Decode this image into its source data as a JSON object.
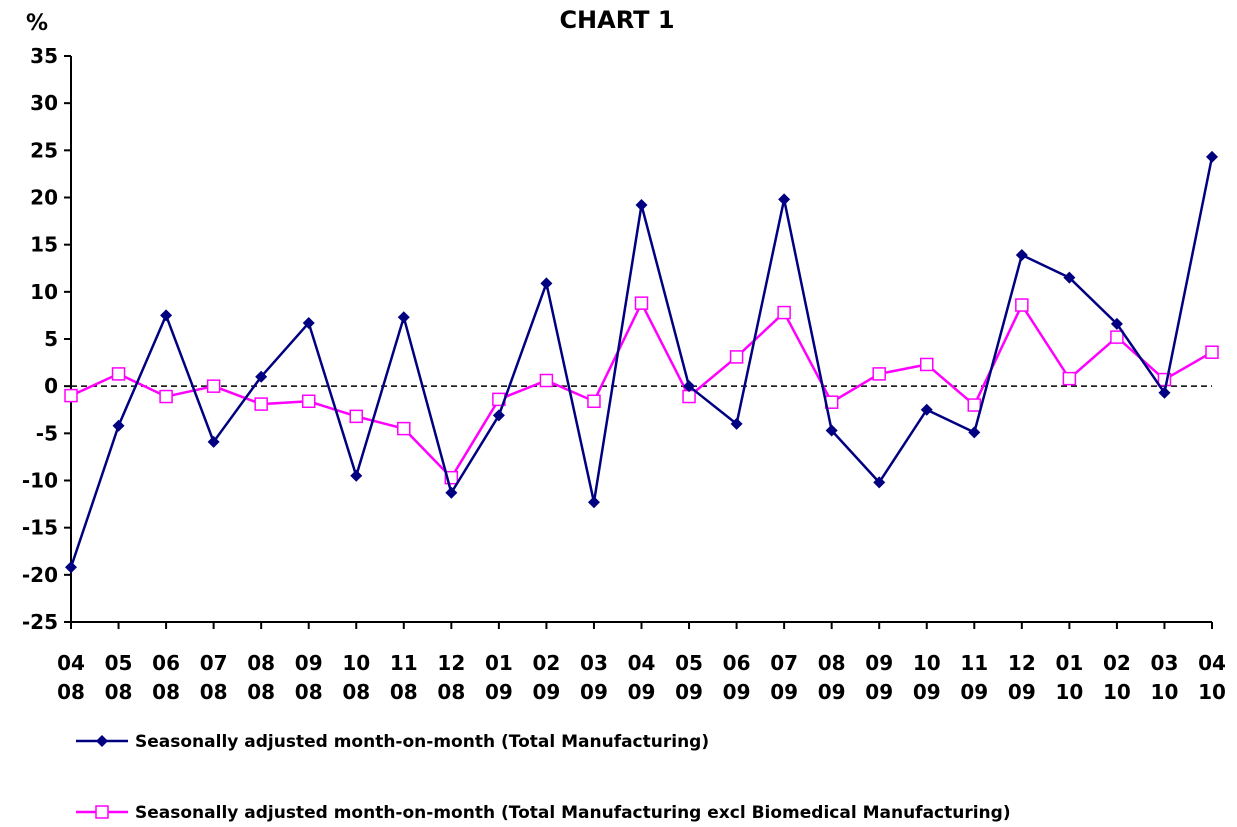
{
  "chart_data": {
    "type": "line",
    "title": "CHART 1",
    "ylabel": "%",
    "xlabel": "",
    "ylim": [
      -25,
      35
    ],
    "yticks": [
      35,
      30,
      25,
      20,
      15,
      10,
      5,
      0,
      -5,
      -10,
      -15,
      -20,
      -25
    ],
    "grid": false,
    "zero_line": "dashed",
    "legend_position": "bottom",
    "categories": [
      [
        "04",
        "08"
      ],
      [
        "05",
        "08"
      ],
      [
        "06",
        "08"
      ],
      [
        "07",
        "08"
      ],
      [
        "08",
        "08"
      ],
      [
        "09",
        "08"
      ],
      [
        "10",
        "08"
      ],
      [
        "11",
        "08"
      ],
      [
        "12",
        "08"
      ],
      [
        "01",
        "09"
      ],
      [
        "02",
        "09"
      ],
      [
        "03",
        "09"
      ],
      [
        "04",
        "09"
      ],
      [
        "05",
        "09"
      ],
      [
        "06",
        "09"
      ],
      [
        "07",
        "09"
      ],
      [
        "08",
        "09"
      ],
      [
        "09",
        "09"
      ],
      [
        "10",
        "09"
      ],
      [
        "11",
        "09"
      ],
      [
        "12",
        "09"
      ],
      [
        "01",
        "10"
      ],
      [
        "02",
        "10"
      ],
      [
        "03",
        "10"
      ],
      [
        "04",
        "10"
      ]
    ],
    "series": [
      {
        "name": "Seasonally adjusted month-on-month (Total Manufacturing)",
        "color": "#000080",
        "marker": "diamond",
        "values": [
          -19.2,
          -4.2,
          7.5,
          -5.9,
          1.0,
          6.7,
          -9.5,
          7.3,
          -11.3,
          -3.1,
          10.9,
          -12.3,
          19.2,
          0.0,
          -4.0,
          19.8,
          -4.7,
          -10.2,
          -2.5,
          -4.9,
          13.9,
          11.5,
          6.6,
          -0.7,
          24.3
        ]
      },
      {
        "name": "Seasonally adjusted month-on-month (Total Manufacturing excl Biomedical Manufacturing)",
        "color": "#ff00ff",
        "marker": "open-square",
        "values": [
          -1.0,
          1.3,
          -1.1,
          0.0,
          -1.9,
          -1.6,
          -3.2,
          -4.5,
          -9.7,
          -1.4,
          0.6,
          -1.6,
          8.8,
          -1.1,
          3.1,
          7.8,
          -1.7,
          1.3,
          2.3,
          -2.0,
          8.6,
          0.8,
          5.2,
          0.7,
          3.6
        ]
      }
    ]
  }
}
